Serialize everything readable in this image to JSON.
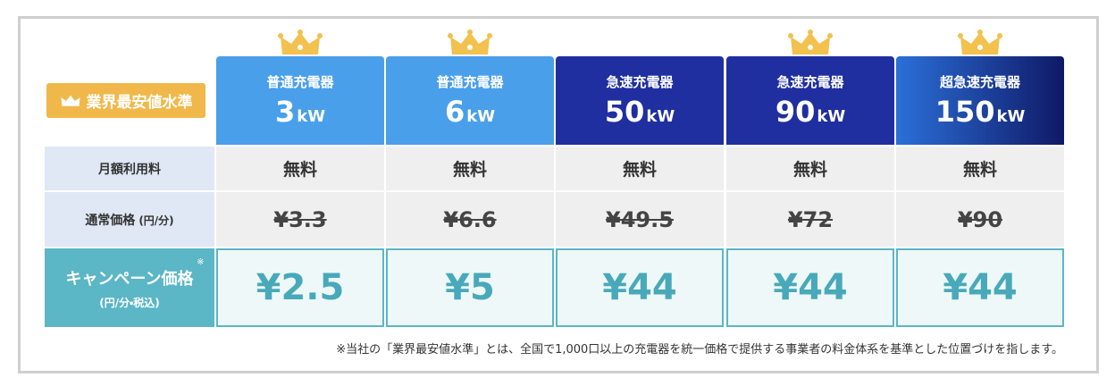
{
  "badge": "業界最安値水準",
  "columns": [
    {
      "type": "普通充電器",
      "power": "3",
      "unit": "kW",
      "crown": true
    },
    {
      "type": "普通充電器",
      "power": "6",
      "unit": "kW",
      "crown": true
    },
    {
      "type": "急速充電器",
      "power": "50",
      "unit": "kW",
      "crown": false
    },
    {
      "type": "急速充電器",
      "power": "90",
      "unit": "kW",
      "crown": true
    },
    {
      "type": "超急速充電器",
      "power": "150",
      "unit": "kW",
      "crown": true
    }
  ],
  "rows": [
    {
      "label": "月額利用料",
      "cells": [
        "無料",
        "無料",
        "無料",
        "無料",
        "無料"
      ]
    },
    {
      "label": "通常価格",
      "label_unit": "(円/分)",
      "cells": [
        "¥3.3",
        "¥6.6",
        "¥49.5",
        "¥72",
        "¥90"
      ]
    },
    {
      "label": "キャンペーン価格",
      "note_mark": "※",
      "label_sub": "(円/分・税込)",
      "cells": [
        "¥2.5",
        "¥5",
        "¥44",
        "¥44",
        "¥44"
      ]
    }
  ],
  "footnote": "※当社の「業界最安値水準」とは、全国で1,000口以上の充電器を統一価格で提供する事業者の料金体系を基準とした位置づけを指します。"
}
